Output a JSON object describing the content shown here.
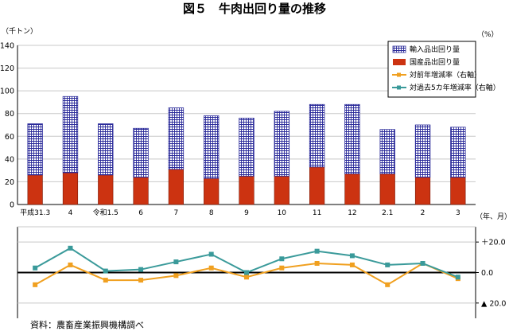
{
  "title": "図５　牛肉出回り量の推移",
  "source": "資料：農畜産業振興機構調べ",
  "colors": {
    "imported_line": "#2b2b9a",
    "imported_fill": "#ffffff",
    "domestic": "#cc3311",
    "yoy": "#f0a020",
    "yoy_2y": "#3a9a9a",
    "zero_line": "#000000",
    "grid": "#c8c8c8"
  },
  "chart_data": [
    {
      "type": "bar",
      "stacked": true,
      "ylabel": "（千トン）",
      "ylim": [
        0,
        140
      ],
      "yticks": [
        0,
        20,
        40,
        60,
        80,
        100,
        120,
        140
      ],
      "grid": true,
      "legend_position": "top-right",
      "categories": [
        "平成31.3",
        "4",
        "令和1.5",
        "6",
        "7",
        "8",
        "9",
        "10",
        "11",
        "12",
        "2.1",
        "2",
        "3"
      ],
      "xlabel": "（年、月）",
      "series": [
        {
          "name": "国産品出回り量",
          "key": "domestic",
          "values": [
            26,
            28,
            26,
            24,
            31,
            23,
            25,
            25,
            33,
            27,
            27,
            24,
            24
          ]
        },
        {
          "name": "輸入品出回り量",
          "key": "imported",
          "values": [
            45,
            67,
            45,
            43,
            54,
            55,
            51,
            57,
            55,
            61,
            39,
            46,
            44
          ]
        }
      ]
    },
    {
      "type": "line",
      "ylabel_right": "（%）",
      "ylim": [
        -30,
        30
      ],
      "yticks": [
        -20,
        0,
        20
      ],
      "ytick_labels": [
        "▲ 20.0",
        "0.0",
        "＋20.0"
      ],
      "categories": [
        "平成31.3",
        "4",
        "令和1.5",
        "6",
        "7",
        "8",
        "9",
        "10",
        "11",
        "12",
        "2.1",
        "2",
        "3"
      ],
      "series": [
        {
          "name": "対前年増減率（右軸）",
          "key": "yoy",
          "values": [
            -8,
            5,
            -5,
            -5,
            -2,
            3,
            -3,
            3,
            6,
            5,
            -8,
            6,
            -4
          ]
        },
        {
          "name": "対過去5カ年増減率（右軸）",
          "key": "yoy_2y",
          "values": [
            3,
            16,
            1,
            2,
            7,
            12,
            0,
            9,
            14,
            11,
            5,
            6,
            -3
          ]
        }
      ]
    }
  ]
}
